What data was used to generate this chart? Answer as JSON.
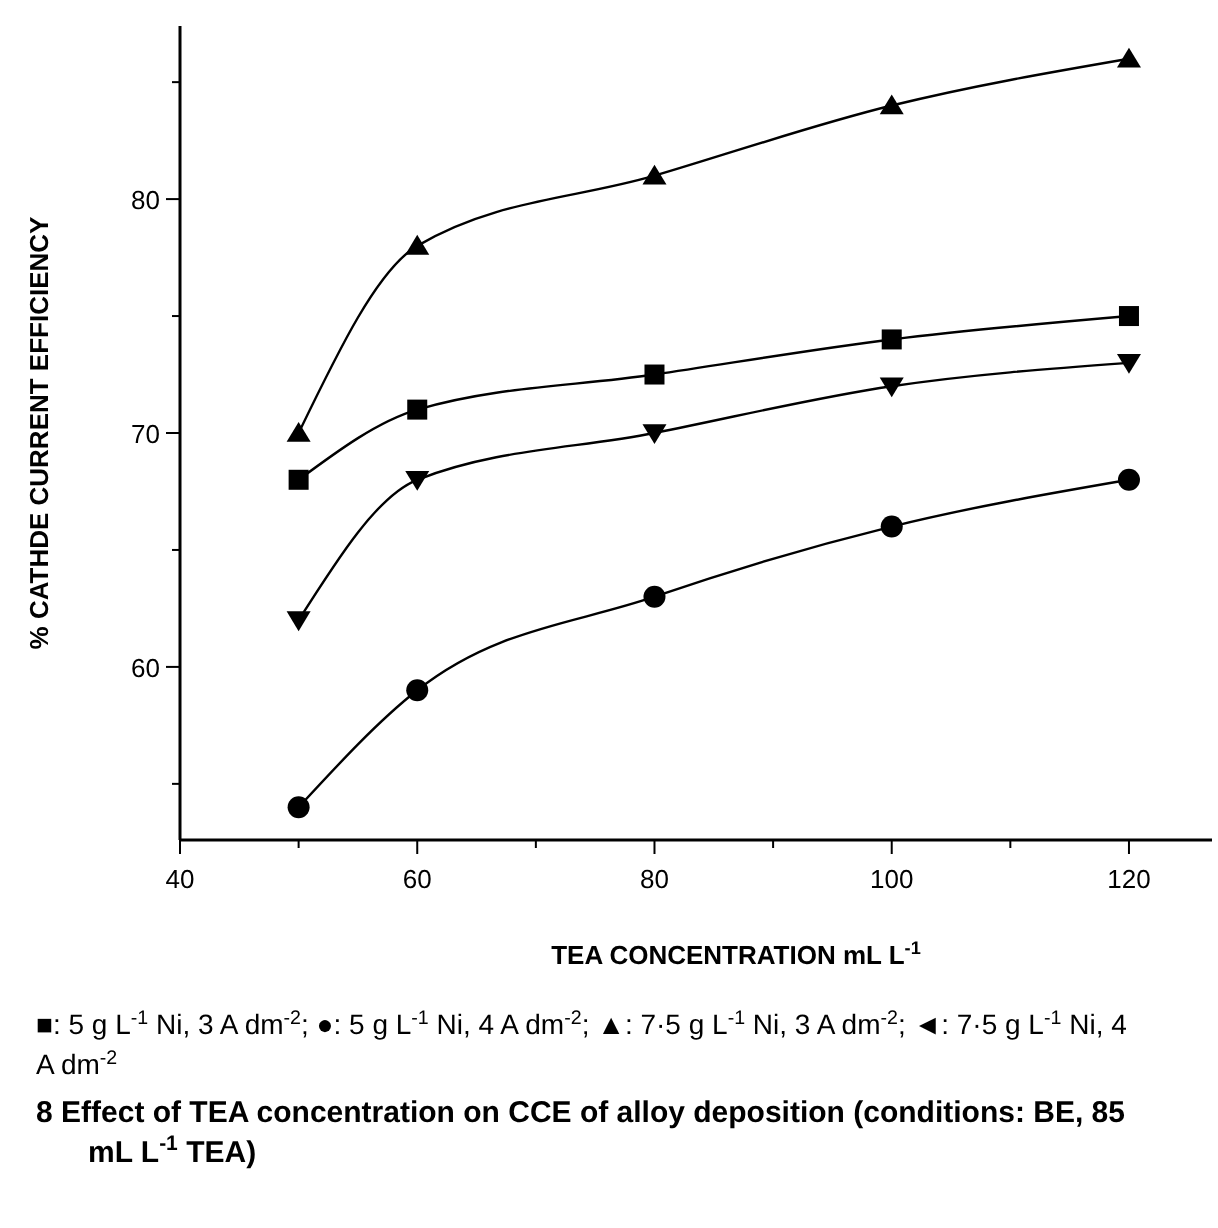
{
  "chart_data": {
    "type": "line",
    "xlabel": "TEA CONCENTRATION mL L$^{-1}$",
    "ylabel": "% CATHDE CURRENT EFFICIENCY",
    "x": [
      50,
      60,
      80,
      100,
      120
    ],
    "series": [
      {
        "color": "#000000",
        "marker": "square",
        "values": [
          68,
          71,
          72.5,
          74,
          75
        ]
      },
      {
        "color": "#000000",
        "marker": "circle",
        "values": [
          54,
          59,
          63,
          66,
          68
        ]
      },
      {
        "color": "#000000",
        "marker": "triangle",
        "values": [
          70,
          78,
          81,
          84,
          86
        ]
      },
      {
        "color": "#000000",
        "marker": "triangle-down",
        "values": [
          62,
          68,
          70,
          72,
          73
        ]
      }
    ],
    "xlim": [
      40,
      127
    ],
    "ylim": [
      52.6,
      87.4
    ],
    "xticks": [
      40,
      {
        "value": 50,
        "label": null
      },
      60,
      {
        "value": 70,
        "label": null
      },
      80,
      {
        "value": 90,
        "label": null
      },
      100,
      {
        "value": 110,
        "label": null
      },
      120
    ],
    "yticks": [
      {
        "value": 55,
        "label": null
      },
      60,
      {
        "value": 65,
        "label": null
      },
      70,
      {
        "value": 75,
        "label": null
      },
      80,
      {
        "value": 85,
        "label": null
      }
    ],
    "grid": false,
    "line_style": "solid",
    "annotations": [
      "■: 5 g L$^{-1}$ Ni, 3 A dm$^{-2}$; ●: 5 g L$^{-1}$ Ni, 4 A dm$^{-2}$; ▲: 7·5 g L$^{-1}$ Ni, 3 A dm$^{-2}$; ◄: 7·5 g L$^{-1}$ Ni, 4 A dm$^{-2}$",
      "8 Effect of TEA concentration on CCE of alloy deposition (conditions: BE, 85 mL L$^{-1}$ TEA)"
    ]
  }
}
